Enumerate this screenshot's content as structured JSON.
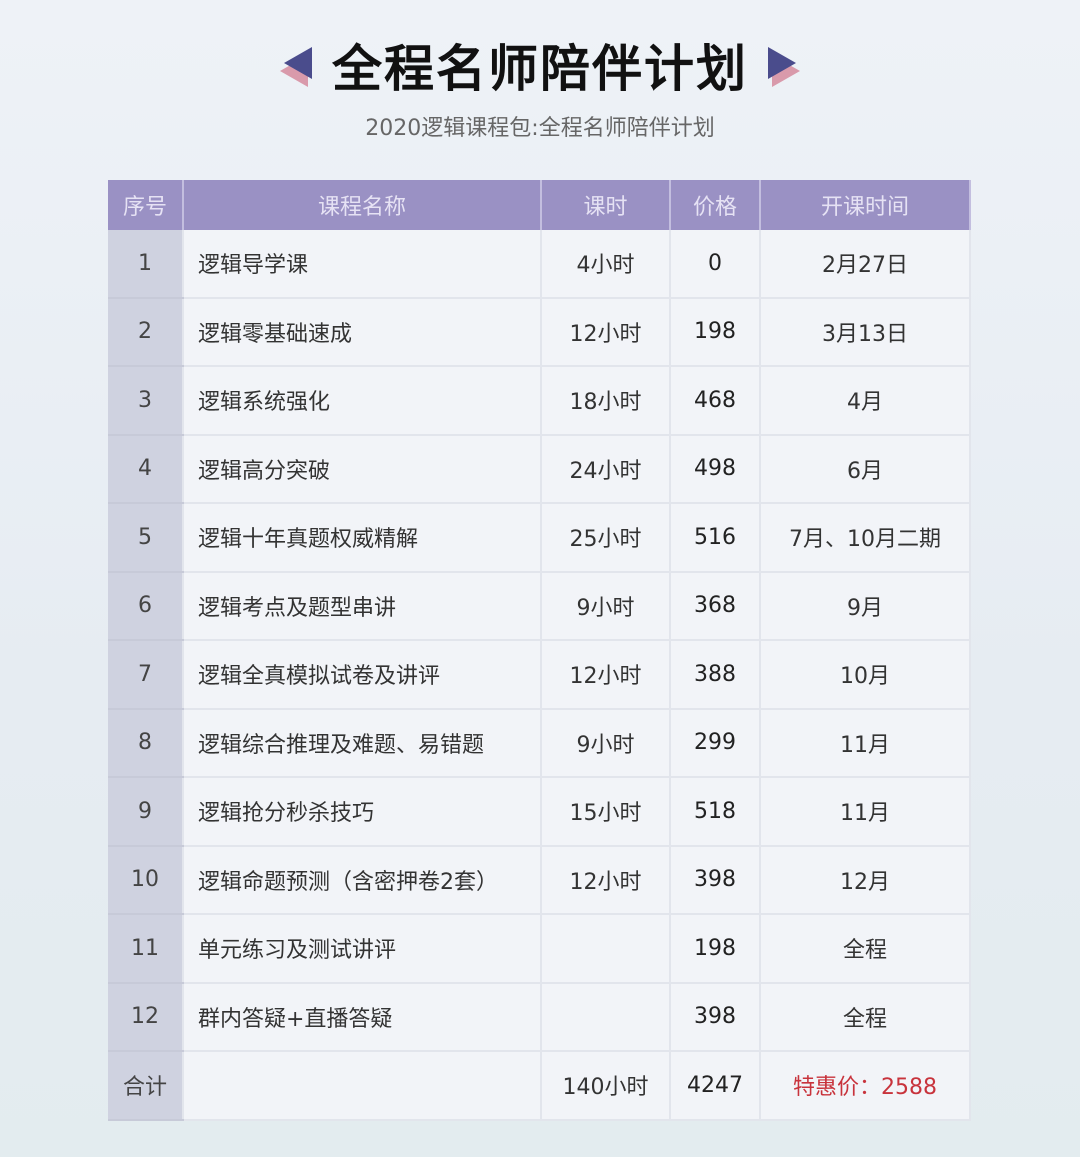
{
  "header": {
    "title": "全程名师陪伴计划",
    "subtitle": "2020逻辑课程包:全程名师陪伴计划",
    "arrow_colors": [
      "#4a4c8c",
      "#d99aab"
    ]
  },
  "table": {
    "columns": [
      "序号",
      "课程名称",
      "课时",
      "价格",
      "开课时间"
    ],
    "rows": [
      [
        "1",
        "逻辑导学课",
        "4小时",
        "0",
        "2月27日"
      ],
      [
        "2",
        "逻辑零基础速成",
        "12小时",
        "198",
        "3月13日"
      ],
      [
        "3",
        "逻辑系统强化",
        "18小时",
        "468",
        "4月"
      ],
      [
        "4",
        "逻辑高分突破",
        "24小时",
        "498",
        "6月"
      ],
      [
        "5",
        "逻辑十年真题权威精解",
        "25小时",
        "516",
        "7月、10月二期"
      ],
      [
        "6",
        "逻辑考点及题型串讲",
        "9小时",
        "368",
        "9月"
      ],
      [
        "7",
        "逻辑全真模拟试卷及讲评",
        "12小时",
        "388",
        "10月"
      ],
      [
        "8",
        "逻辑综合推理及难题、易错题",
        "9小时",
        "299",
        "11月"
      ],
      [
        "9",
        "逻辑抢分秒杀技巧",
        "15小时",
        "518",
        "11月"
      ],
      [
        "10",
        "逻辑命题预测（含密押卷2套）",
        "12小时",
        "398",
        "12月"
      ],
      [
        "11",
        "单元练习及测试讲评",
        "",
        "198",
        "全程"
      ],
      [
        "12",
        "群内答疑+直播答疑",
        "",
        "398",
        "全程"
      ]
    ],
    "total": {
      "label": "合计",
      "name": "",
      "hours": "140小时",
      "price": "4247",
      "special": "特惠价：2588"
    },
    "colors": {
      "header_bg": "#9a91c4",
      "index_bg": "#cfd2e0",
      "special": "#c8333c"
    }
  }
}
